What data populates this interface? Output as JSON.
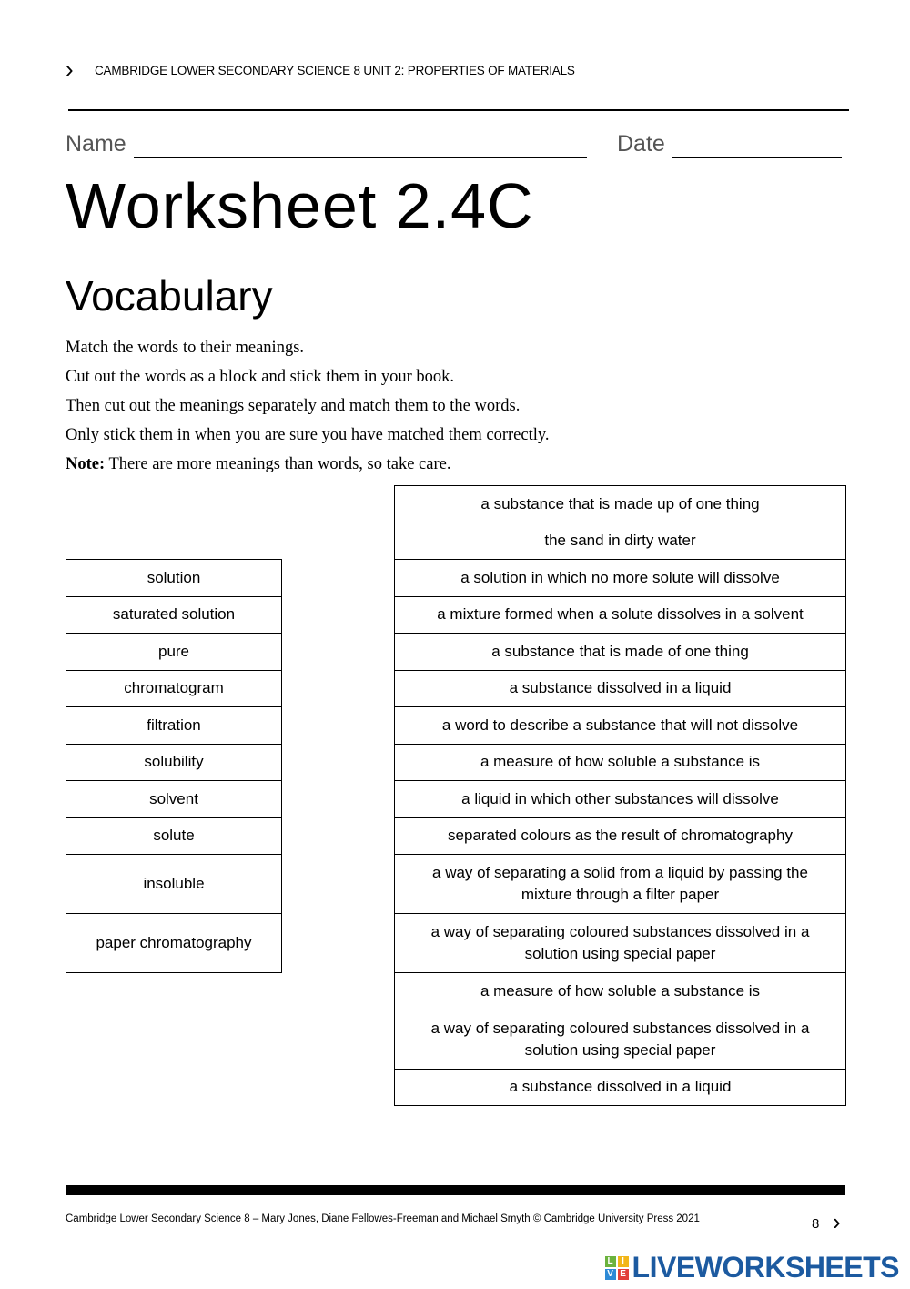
{
  "header": {
    "running_title": "CAMBRIDGE LOWER SECONDARY SCIENCE 8 UNIT 2: PROPERTIES OF MATERIALS"
  },
  "form": {
    "name_label": "Name",
    "date_label": "Date"
  },
  "title": "Worksheet 2.4C",
  "section": "Vocabulary",
  "instructions": [
    "Match the words to their meanings.",
    "Cut out the words as a block and stick them in your book.",
    "Then cut out the meanings separately and match them to the words.",
    "Only stick them in when you are sure you have matched them correctly."
  ],
  "note": {
    "label": "Note:",
    "text": " There are more meanings than words, so take care."
  },
  "words": [
    "solution",
    "saturated solution",
    "pure",
    "chromatogram",
    "filtration",
    "solubility",
    "solvent",
    "solute",
    "insoluble",
    "paper chromatography"
  ],
  "meanings": [
    "a substance that is made up of one thing",
    "the sand in dirty water",
    "a solution in which no more solute will dissolve",
    "a mixture formed when a solute dissolves in a solvent",
    "a substance that is made of one thing",
    "a substance dissolved in a liquid",
    "a word to describe a substance that will not dissolve",
    "a measure of how soluble a substance is",
    "a liquid in which other substances will dissolve",
    "separated colours as the result of chromatography",
    "a way of separating a solid from a liquid by passing the mixture through a filter paper",
    "a way of separating coloured substances dissolved in a solution using special paper",
    "a measure of how soluble a substance is",
    "a way of separating coloured substances dissolved in a solution using special paper",
    "a substance dissolved in a liquid"
  ],
  "footer": {
    "credit": "Cambridge Lower Secondary Science 8 – Mary Jones, Diane Fellowes-Freeman and Michael Smyth © Cambridge University Press 2021",
    "page": "8"
  },
  "watermark": {
    "text": "LIVEWORKSHEETS",
    "badge": [
      "L",
      "I",
      "V",
      "E"
    ],
    "badge_colors": [
      "#6bb33e",
      "#f2b619",
      "#2d8ad6",
      "#e2403a"
    ],
    "text_color": "#1c5aa0"
  }
}
